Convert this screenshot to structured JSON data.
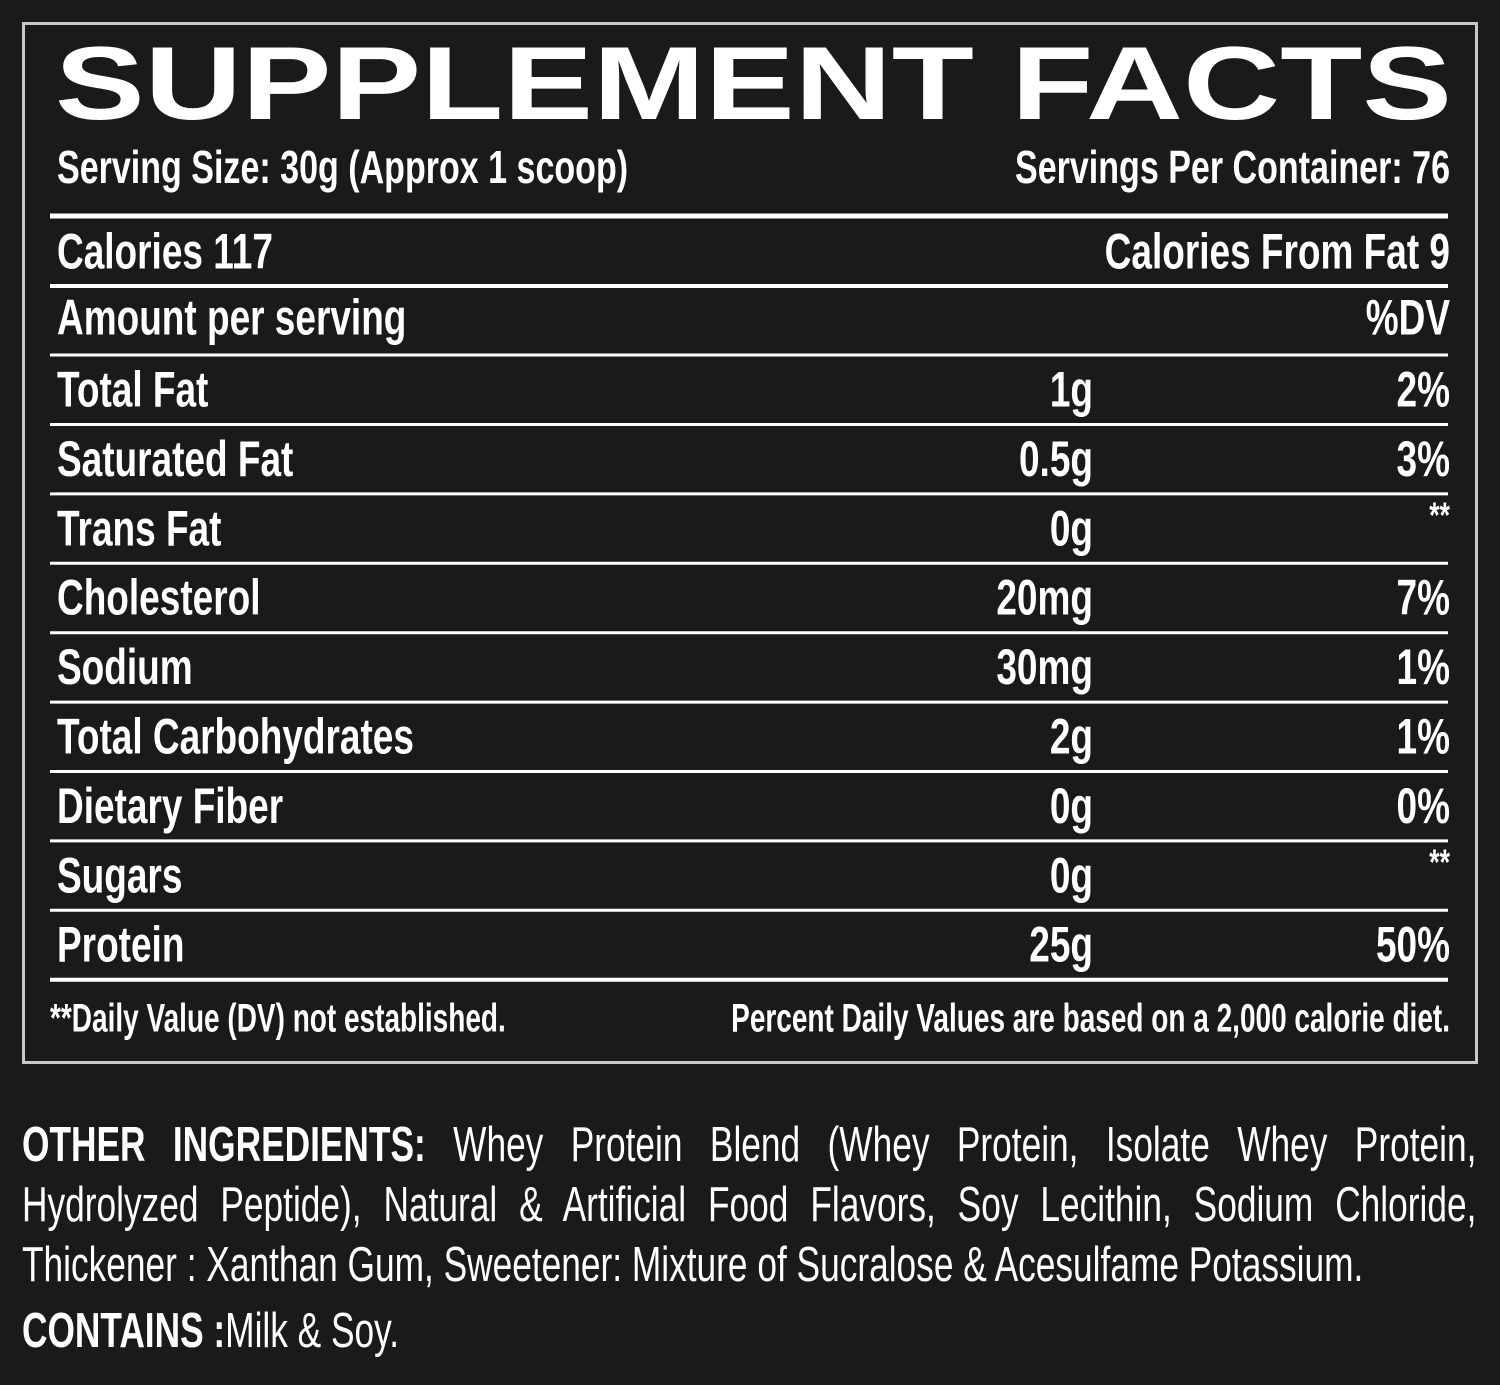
{
  "title": "SUPPLEMENT FACTS",
  "serving_size": "Serving Size: 30g  (Approx 1 scoop)",
  "servings_per_container": "Servings Per Container: 76",
  "calories": "Calories 117",
  "calories_from_fat": "Calories From Fat 9",
  "table": {
    "header": [
      "Amount per serving",
      "%DV"
    ],
    "rows": [
      [
        "Total Fat",
        "1g",
        "2%"
      ],
      [
        "Saturated Fat",
        "0.5g",
        "3%"
      ],
      [
        "Trans Fat",
        "0g",
        "**"
      ],
      [
        "Cholesterol",
        "20mg",
        "7%"
      ],
      [
        "Sodium",
        "30mg",
        "1%"
      ],
      [
        "Total Carbohydrates",
        "2g",
        "1%"
      ],
      [
        "Dietary Fiber",
        "0g",
        "0%"
      ],
      [
        "Sugars",
        "0g",
        "**"
      ],
      [
        "Protein",
        "25g",
        "50%"
      ]
    ]
  },
  "footnotes": [
    "**Daily Value (DV) not established.",
    "Percent Daily Values are based on a 2,000 calorie diet."
  ],
  "ingredients": {
    "label": "OTHER INGREDIENTS:",
    "text": "Whey Protein Blend (Whey Protein, Isolate Whey Protein, Hydrolyzed Peptide), Natural & Artificial Food Flavors, Soy Lecithin, Sodium Chloride, Thickener : Xanthan Gum, Sweetener: Mixture of Sucralose & Acesulfame Potassium."
  },
  "contains": {
    "label": "CONTAINS :",
    "text": "Milk & Soy."
  }
}
